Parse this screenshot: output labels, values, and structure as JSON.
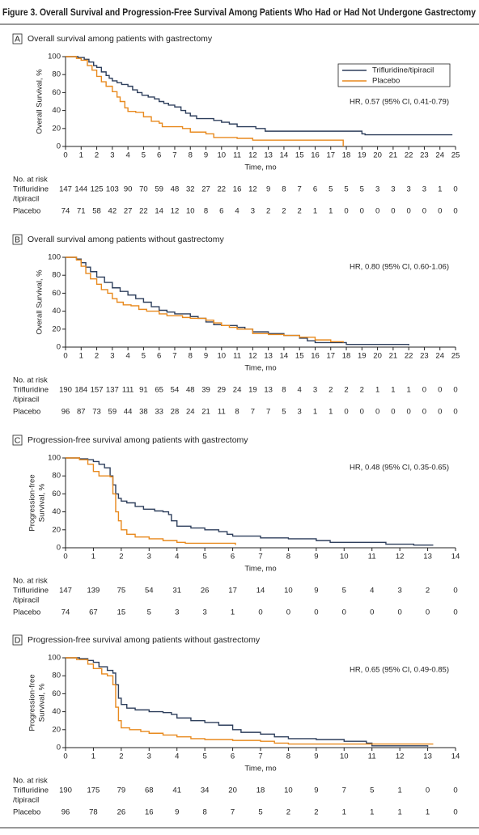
{
  "figure_title": "Figure 3. Overall Survival and Progression-Free Survival Among Patients Who Had or Had Not Undergone Gastrectomy",
  "chart_data": [
    {
      "type": "line",
      "step": true,
      "panel": "A",
      "title": "Overall survival among patients with gastrectomy",
      "xlabel": "Time, mo",
      "ylabel": [
        "Overall Survival, %"
      ],
      "annotation": "HR, 0.57 (95% CI, 0.41-0.79)",
      "xlim": [
        0,
        25
      ],
      "xticks": [
        0,
        1,
        2,
        3,
        4,
        5,
        6,
        7,
        8,
        9,
        10,
        11,
        12,
        13,
        14,
        15,
        16,
        17,
        18,
        19,
        20,
        21,
        22,
        23,
        24,
        25
      ],
      "ylim": [
        0,
        100
      ],
      "yticks": [
        0,
        20,
        40,
        60,
        80,
        100
      ],
      "legend": "top-right",
      "series": [
        {
          "name": "Trifluridine/tipiracil",
          "color": "#2e3f5c",
          "x": [
            0,
            0.8,
            1.2,
            1.5,
            1.8,
            2,
            2.3,
            2.6,
            2.8,
            3,
            3.3,
            3.6,
            4,
            4.3,
            4.6,
            4.9,
            5.3,
            5.7,
            6,
            6.3,
            6.6,
            7,
            7.4,
            7.7,
            8,
            8.4,
            9.5,
            10,
            10.5,
            11,
            12.2,
            12.8,
            19,
            19.2,
            24.8
          ],
          "values": [
            100,
            99,
            97,
            94,
            90,
            88,
            83,
            79,
            76,
            73,
            71,
            69,
            67,
            63,
            60,
            57,
            55,
            53,
            50,
            48,
            46,
            44,
            40,
            37,
            34,
            31,
            29,
            27,
            25,
            22,
            20,
            17,
            14,
            13,
            13
          ]
        },
        {
          "name": "Placebo",
          "color": "#e8891d",
          "x": [
            0,
            0.7,
            1,
            1.4,
            1.7,
            2,
            2.3,
            2.6,
            3,
            3.3,
            3.5,
            3.8,
            4,
            4.5,
            5,
            5.5,
            6,
            6.2,
            7.5,
            8,
            9,
            9.5,
            11,
            12,
            17.8,
            17.8
          ],
          "values": [
            100,
            98,
            96,
            90,
            85,
            78,
            72,
            67,
            61,
            55,
            50,
            43,
            39,
            38,
            33,
            28,
            26,
            22,
            20,
            16,
            14,
            10,
            9,
            7,
            7,
            0
          ]
        }
      ],
      "risk_table": {
        "title": "No. at risk",
        "rows": [
          {
            "label": [
              "Trifluridine",
              "/tipiracil"
            ],
            "values": [
              147,
              144,
              125,
              103,
              90,
              70,
              59,
              48,
              32,
              27,
              22,
              16,
              12,
              9,
              8,
              7,
              6,
              5,
              5,
              5,
              3,
              3,
              3,
              3,
              1,
              0
            ]
          },
          {
            "label": [
              "Placebo"
            ],
            "values": [
              74,
              71,
              58,
              42,
              27,
              22,
              14,
              12,
              10,
              8,
              6,
              4,
              3,
              2,
              2,
              2,
              1,
              1,
              0,
              0,
              0,
              0,
              0,
              0,
              0,
              0
            ]
          }
        ]
      }
    },
    {
      "type": "line",
      "step": true,
      "panel": "B",
      "title": "Overall survival among patients without gastrectomy",
      "xlabel": "Time, mo",
      "ylabel": [
        "Overall Survival, %"
      ],
      "annotation": "HR, 0.80 (95% CI, 0.60-1.06)",
      "xlim": [
        0,
        25
      ],
      "xticks": [
        0,
        1,
        2,
        3,
        4,
        5,
        6,
        7,
        8,
        9,
        10,
        11,
        12,
        13,
        14,
        15,
        16,
        17,
        18,
        19,
        20,
        21,
        22,
        23,
        24,
        25
      ],
      "ylim": [
        0,
        100
      ],
      "yticks": [
        0,
        20,
        40,
        60,
        80,
        100
      ],
      "series": [
        {
          "color": "#2e3f5c",
          "x": [
            0,
            0.7,
            1,
            1.3,
            1.6,
            2,
            2.5,
            3,
            3.5,
            4,
            4.5,
            5,
            5.5,
            6,
            6.5,
            7,
            8,
            8.5,
            9,
            9.5,
            10,
            11,
            11.5,
            12,
            13,
            14,
            15,
            15.5,
            16,
            18,
            22
          ],
          "values": [
            100,
            98,
            94,
            89,
            84,
            78,
            72,
            66,
            62,
            58,
            54,
            50,
            45,
            41,
            39,
            37,
            34,
            32,
            28,
            25,
            24,
            22,
            20,
            17,
            15,
            13,
            10,
            7,
            5,
            3,
            2
          ]
        },
        {
          "color": "#e8891d",
          "x": [
            0,
            0.7,
            1,
            1.3,
            1.6,
            2,
            2.3,
            2.7,
            3,
            3.3,
            3.7,
            4.2,
            4.7,
            5.2,
            6,
            6.5,
            7.5,
            8,
            9,
            9.5,
            10,
            10.5,
            11,
            12,
            13,
            14,
            15,
            16,
            17,
            17.8
          ],
          "values": [
            100,
            97,
            90,
            82,
            76,
            70,
            64,
            60,
            54,
            50,
            47,
            46,
            42,
            40,
            37,
            35,
            33,
            32,
            30,
            27,
            24,
            22,
            20,
            15,
            14,
            13,
            11,
            8,
            6,
            5
          ]
        }
      ],
      "risk_table": {
        "title": "No. at risk",
        "rows": [
          {
            "label": [
              "Trifluridine",
              "/tipiracil"
            ],
            "values": [
              190,
              184,
              157,
              137,
              111,
              91,
              65,
              54,
              48,
              39,
              29,
              24,
              19,
              13,
              8,
              4,
              3,
              2,
              2,
              2,
              1,
              1,
              1,
              0,
              0,
              0
            ]
          },
          {
            "label": [
              "Placebo"
            ],
            "values": [
              96,
              87,
              73,
              59,
              44,
              38,
              33,
              28,
              24,
              21,
              11,
              8,
              7,
              7,
              5,
              3,
              1,
              1,
              0,
              0,
              0,
              0,
              0,
              0,
              0,
              0
            ]
          }
        ]
      }
    },
    {
      "type": "line",
      "step": true,
      "panel": "C",
      "title": "Progression-free survival among patients with gastrectomy",
      "xlabel": "Time, mo",
      "ylabel": [
        "Progression-free",
        "Survival, %"
      ],
      "annotation": "HR, 0.48 (95% CI, 0.35-0.65)",
      "xlim": [
        0,
        14
      ],
      "xticks": [
        0,
        1,
        2,
        3,
        4,
        5,
        6,
        7,
        8,
        9,
        10,
        11,
        12,
        13,
        14
      ],
      "ylim": [
        0,
        100
      ],
      "yticks": [
        0,
        20,
        40,
        60,
        80,
        100
      ],
      "series": [
        {
          "color": "#2e3f5c",
          "x": [
            0,
            0.5,
            0.8,
            1,
            1.2,
            1.4,
            1.6,
            1.7,
            1.8,
            1.9,
            2,
            2.2,
            2.5,
            2.8,
            3.2,
            3.5,
            3.7,
            3.8,
            4,
            4.5,
            5,
            5.5,
            5.8,
            6,
            7,
            8,
            9,
            9.5,
            11.5,
            12.5,
            13.2
          ],
          "values": [
            100,
            99,
            98,
            96,
            93,
            89,
            80,
            70,
            60,
            55,
            52,
            50,
            46,
            43,
            41,
            40,
            37,
            30,
            24,
            22,
            20,
            18,
            15,
            13,
            11,
            10,
            8,
            6,
            4,
            3,
            3
          ]
        },
        {
          "color": "#e8891d",
          "x": [
            0,
            0.5,
            0.8,
            1,
            1.2,
            1.6,
            1.7,
            1.8,
            1.9,
            2,
            2.2,
            2.5,
            3,
            3.5,
            4,
            4.3,
            6,
            6.1
          ],
          "values": [
            100,
            98,
            93,
            85,
            80,
            79,
            60,
            40,
            30,
            20,
            15,
            12,
            10,
            8,
            6,
            5,
            5,
            3
          ]
        }
      ],
      "risk_table": {
        "title": "No. at risk",
        "rows": [
          {
            "label": [
              "Trifluridine",
              "/tipiracil"
            ],
            "values": [
              147,
              139,
              75,
              54,
              31,
              26,
              17,
              14,
              10,
              9,
              5,
              4,
              3,
              2,
              0
            ]
          },
          {
            "label": [
              "Placebo"
            ],
            "values": [
              74,
              67,
              15,
              5,
              3,
              3,
              1,
              0,
              0,
              0,
              0,
              0,
              0,
              0,
              0
            ]
          }
        ]
      }
    },
    {
      "type": "line",
      "step": true,
      "panel": "D",
      "title": "Progression-free survival among patients without gastrectomy",
      "xlabel": "Time, mo",
      "ylabel": [
        "Progression-free",
        "Survival, %"
      ],
      "annotation": "HR, 0.65 (95% CI, 0.49-0.85)",
      "xlim": [
        0,
        14
      ],
      "xticks": [
        0,
        1,
        2,
        3,
        4,
        5,
        6,
        7,
        8,
        9,
        10,
        11,
        12,
        13,
        14
      ],
      "ylim": [
        0,
        100
      ],
      "yticks": [
        0,
        20,
        40,
        60,
        80,
        100
      ],
      "series": [
        {
          "color": "#2e3f5c",
          "x": [
            0,
            0.5,
            0.8,
            1,
            1.2,
            1.5,
            1.7,
            1.8,
            1.9,
            2,
            2.2,
            2.5,
            3,
            3.5,
            3.8,
            4,
            4.5,
            5,
            5.5,
            6,
            6.3,
            7,
            7.5,
            8,
            9,
            10,
            10.8,
            11,
            13
          ],
          "values": [
            100,
            99,
            97,
            95,
            90,
            86,
            83,
            70,
            55,
            48,
            44,
            42,
            40,
            39,
            37,
            33,
            30,
            28,
            25,
            20,
            17,
            15,
            12,
            10,
            9,
            7,
            5,
            2,
            1
          ]
        },
        {
          "color": "#e8891d",
          "x": [
            0,
            0.4,
            0.8,
            1,
            1.3,
            1.5,
            1.7,
            1.8,
            1.9,
            2,
            2.3,
            2.7,
            3,
            3.5,
            4,
            4.5,
            5,
            6,
            7,
            7.5,
            8,
            13.2
          ],
          "values": [
            100,
            98,
            93,
            88,
            82,
            80,
            70,
            45,
            30,
            22,
            20,
            18,
            16,
            14,
            12,
            10,
            9,
            8,
            7,
            5,
            4,
            4
          ]
        }
      ],
      "risk_table": {
        "title": "No. at risk",
        "rows": [
          {
            "label": [
              "Trifluridine",
              "/tipiracil"
            ],
            "values": [
              190,
              175,
              79,
              68,
              41,
              34,
              20,
              18,
              10,
              9,
              7,
              5,
              1,
              0,
              0
            ]
          },
          {
            "label": [
              "Placebo"
            ],
            "values": [
              96,
              78,
              26,
              16,
              9,
              8,
              7,
              5,
              2,
              2,
              1,
              1,
              1,
              1,
              0
            ]
          }
        ]
      }
    }
  ]
}
